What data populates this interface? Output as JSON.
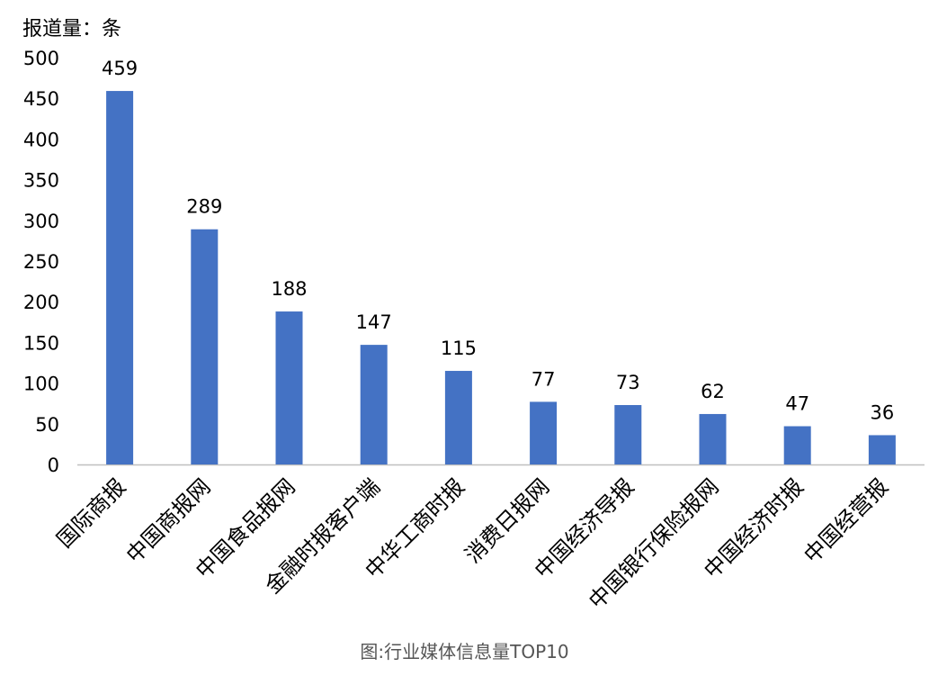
{
  "chart_data": {
    "type": "bar",
    "ylabel": "报道量：条",
    "caption": "图:行业媒体信息量TOP10",
    "categories": [
      "国际商报",
      "中国商报网",
      "中国食品报网",
      "金融时报客户端",
      "中华工商时报",
      "消费日报网",
      "中国经济导报",
      "中国银行保险报网",
      "中国经济时报",
      "中国经营报"
    ],
    "values": [
      459,
      289,
      188,
      147,
      115,
      77,
      73,
      62,
      47,
      36
    ],
    "ylim": [
      0,
      500
    ],
    "yticks": [
      0,
      50,
      100,
      150,
      200,
      250,
      300,
      350,
      400,
      450,
      500
    ],
    "grid": false,
    "bar_color": "#4472C4"
  }
}
